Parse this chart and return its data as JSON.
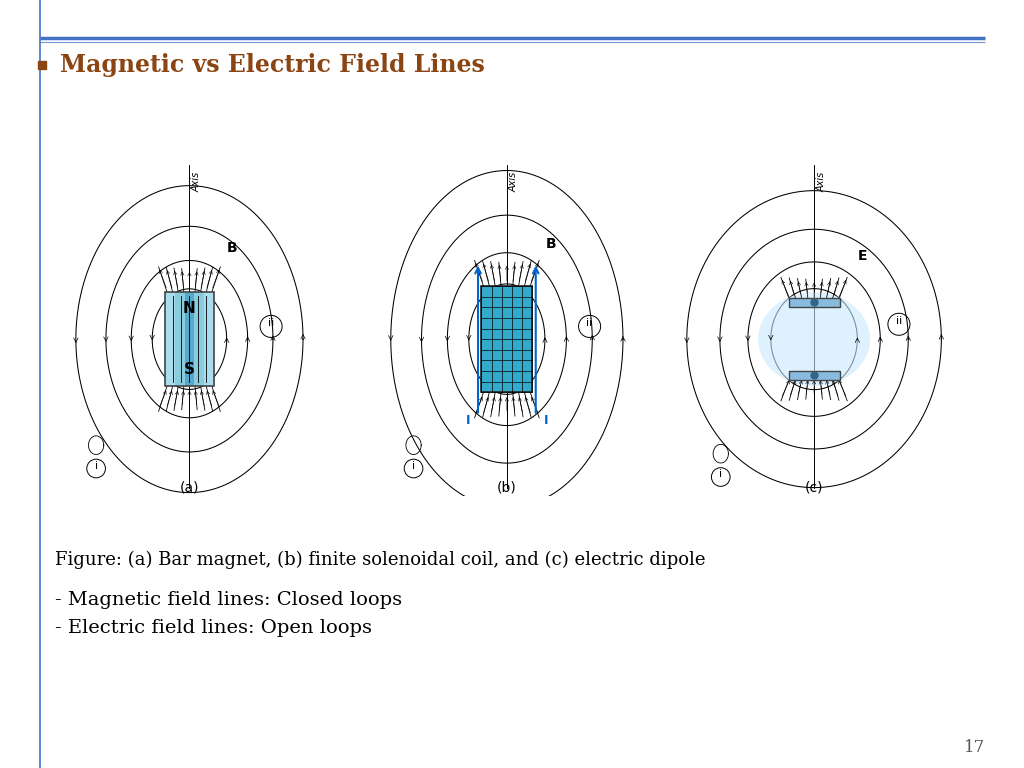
{
  "title": "Magnetic vs Electric Field Lines",
  "title_color": "#8B4513",
  "bullet_color": "#8B4513",
  "line_color_top": "#4472C4",
  "line_color_bottom": "#7094D4",
  "figure_caption": "Figure: (a) Bar magnet, (b) finite solenoidal coil, and (c) electric dipole",
  "bullet1": "- Magnetic field lines: Closed loops",
  "bullet2": "- Electric field lines: Open loops",
  "page_number": "17",
  "bg_color": "#FFFFFF",
  "text_color": "#000000",
  "magnet_fill_colors": [
    "#AADDEE",
    "#88CCDD",
    "#55AACC",
    "#88CCDD",
    "#AADDEE"
  ],
  "coil_fill": "#33AACC",
  "dipole_fill": "#88BBDD",
  "dipole_glow": "#C8E8FF"
}
